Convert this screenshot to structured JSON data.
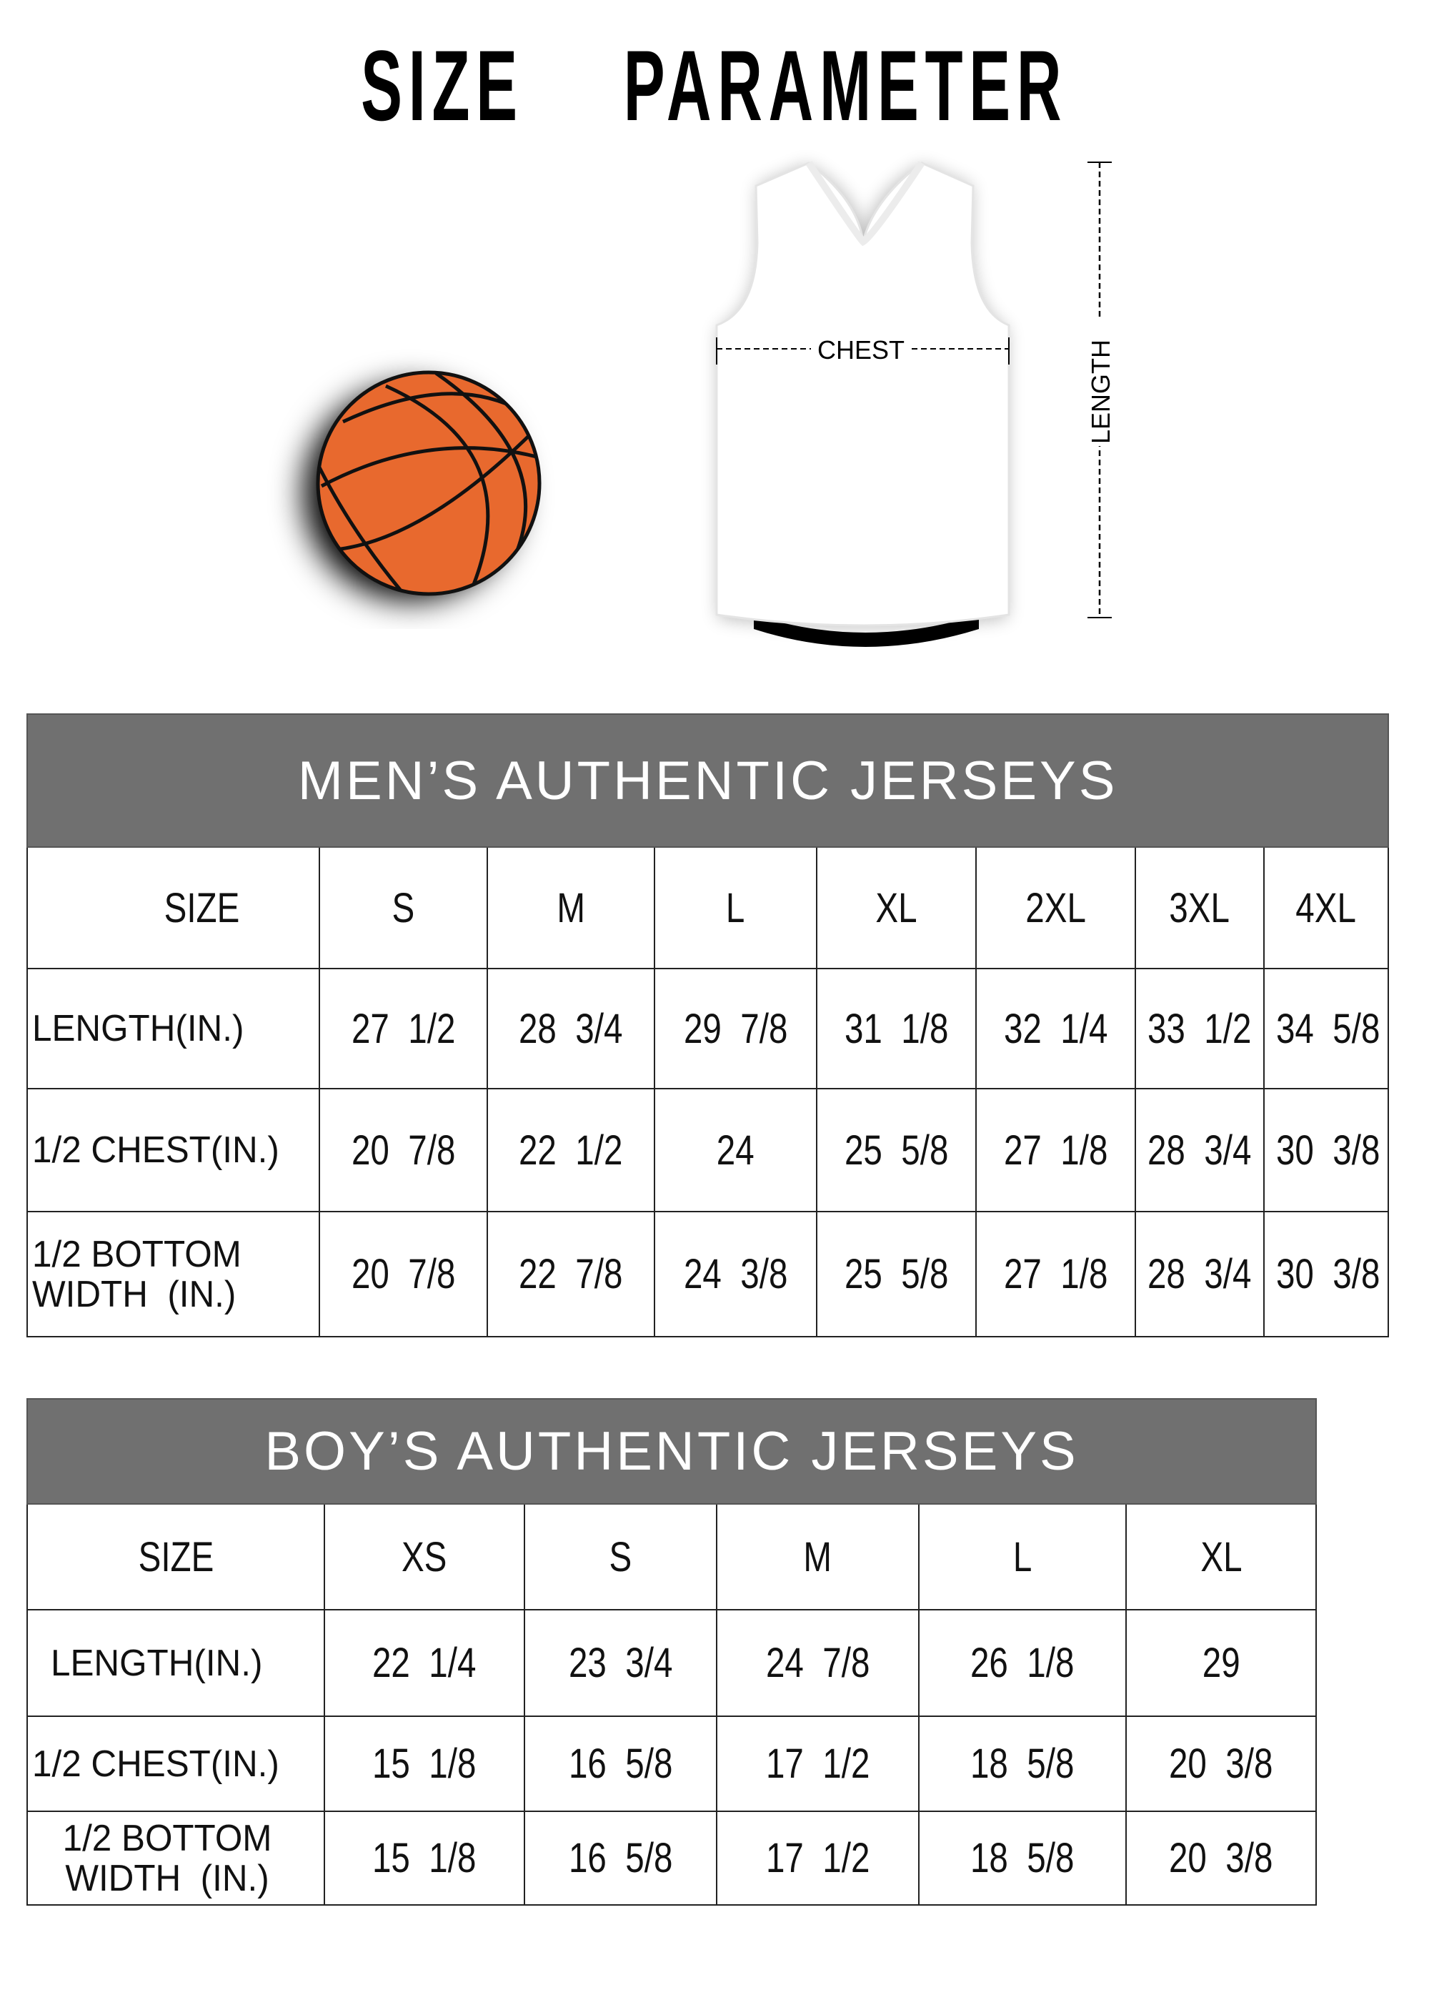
{
  "title": "SIZE  PARAMETER",
  "diagram": {
    "chest_label": "CHEST",
    "length_label": "LENGTH",
    "ball_color": "#E8692E"
  },
  "colors": {
    "header_bg": "#707070",
    "header_text": "#FFFFFF"
  },
  "mens": {
    "title": "MEN’S AUTHENTIC JERSEYS",
    "size_label": "SIZE",
    "sizes": [
      "S",
      "M",
      "L",
      "XL",
      "2XL",
      "3XL",
      "4XL"
    ],
    "rows": [
      {
        "label": "LENGTH(IN.)",
        "values": [
          "27  1/2",
          "28  3/4",
          "29  7/8",
          "31  1/8",
          "32  1/4",
          "33  1/2",
          "34  5/8"
        ]
      },
      {
        "label": "1/2 CHEST(IN.)",
        "values": [
          "20  7/8",
          "22  1/2",
          "24",
          "25  5/8",
          "27  1/8",
          "28  3/4",
          "30  3/8"
        ]
      },
      {
        "label": "1/2 BOTTOM WIDTH  (IN.)",
        "values": [
          "20  7/8",
          "22  7/8",
          "24  3/8",
          "25  5/8",
          "27  1/8",
          "28  3/4",
          "30  3/8"
        ]
      }
    ]
  },
  "boys": {
    "title": "BOY’S AUTHENTIC JERSEYS",
    "size_label": "SIZE",
    "sizes": [
      "XS",
      "S",
      "M",
      "L",
      "XL"
    ],
    "rows": [
      {
        "label": "LENGTH(IN.)",
        "values": [
          "22  1/4",
          "23  3/4",
          "24  7/8",
          "26  1/8",
          "29"
        ]
      },
      {
        "label": "1/2 CHEST(IN.)",
        "values": [
          "15  1/8",
          "16  5/8",
          "17  1/2",
          "18  5/8",
          "20  3/8"
        ]
      },
      {
        "label": "1/2 BOTTOM WIDTH  (IN.)",
        "values": [
          "15  1/8",
          "16  5/8",
          "17  1/2",
          "18  5/8",
          "20  3/8"
        ]
      }
    ]
  }
}
